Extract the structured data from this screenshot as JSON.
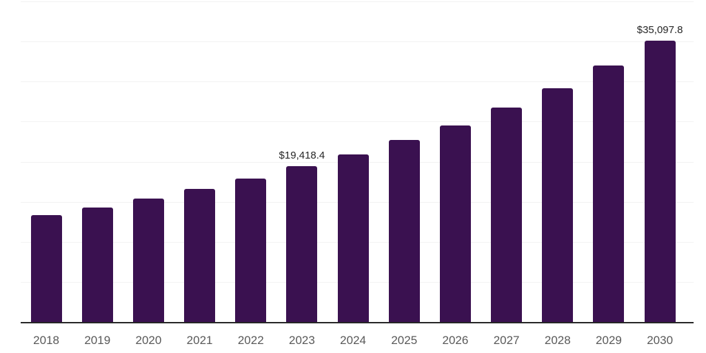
{
  "chart_data": {
    "type": "bar",
    "title": "",
    "xlabel": "",
    "ylabel": "",
    "categories": [
      "2018",
      "2019",
      "2020",
      "2021",
      "2022",
      "2023",
      "2024",
      "2025",
      "2026",
      "2027",
      "2028",
      "2029",
      "2030"
    ],
    "values": [
      13360,
      14280,
      15400,
      16560,
      17890,
      19418.4,
      20900,
      22670,
      24520,
      26750,
      29120,
      32000,
      35097.8
    ],
    "labeled_points": [
      {
        "category": "2023",
        "label": "$19,418.4"
      },
      {
        "category": "2030",
        "label": "$35,097.8"
      }
    ],
    "ylim": [
      0,
      40000
    ],
    "gridline_step": 5000,
    "grid": "horizontal gridlines only, no y-axis tick labels",
    "legend_position": "none",
    "colors": {
      "bar": "#3A1150",
      "axis_line": "#262626",
      "tick_label": "#595959",
      "data_label": "#262626",
      "gridline": "#F2F2F2",
      "background": "#FFFFFF"
    }
  }
}
